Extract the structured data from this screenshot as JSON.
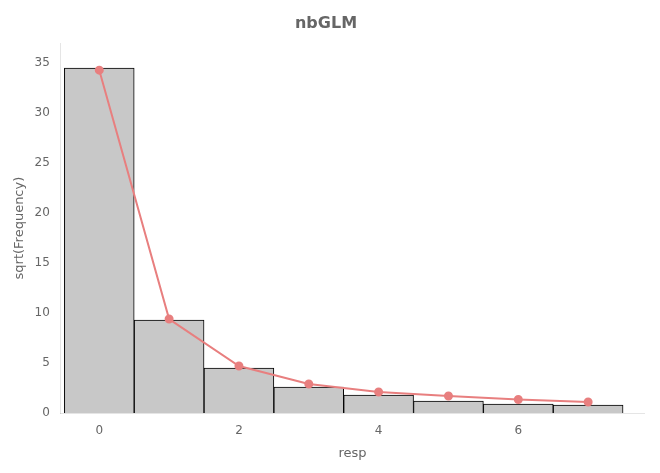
{
  "chart_data": {
    "type": "bar",
    "title": "nbGLM",
    "xlabel": "resp",
    "ylabel": "sqrt(Frequency)",
    "x": [
      0,
      1,
      2,
      3,
      4,
      5,
      6,
      7
    ],
    "series": [
      {
        "type": "bar",
        "color": "#c8c8c8",
        "values": [
          34.5,
          9.3,
          4.5,
          2.6,
          1.8,
          1.2,
          0.9,
          0.8
        ]
      },
      {
        "type": "line",
        "color": "#e87f7f",
        "marker": "circle",
        "values": [
          34.3,
          9.4,
          4.7,
          2.9,
          2.1,
          1.7,
          1.35,
          1.1
        ]
      }
    ],
    "xlim": [
      -0.55,
      7.8
    ],
    "xticks": [
      0,
      2,
      4,
      6
    ],
    "ylim": [
      0,
      37
    ],
    "yticks": [
      0,
      5,
      10,
      15,
      20,
      25,
      30,
      35
    ],
    "grid": false
  }
}
